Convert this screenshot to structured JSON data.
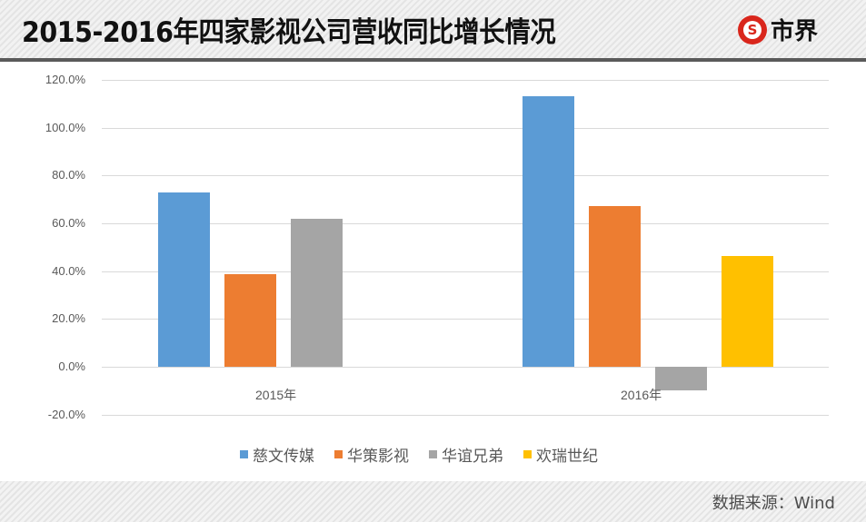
{
  "header": {
    "title": "2015-2016年四家影视公司营收同比增长情况",
    "logo_mark": "S",
    "logo_text": "市界"
  },
  "footer": {
    "source": "数据来源：Wind"
  },
  "colors": {
    "慈文传媒": "#5B9BD5",
    "华策影视": "#ED7D31",
    "华谊兄弟": "#A5A5A5",
    "欢瑞世纪": "#FFC000"
  },
  "legend": [
    {
      "label": "慈文传媒",
      "color": "#5B9BD5"
    },
    {
      "label": "华策影视",
      "color": "#ED7D31"
    },
    {
      "label": "华谊兄弟",
      "color": "#A5A5A5"
    },
    {
      "label": "欢瑞世纪",
      "color": "#FFC000"
    }
  ],
  "axis": {
    "yticks": [
      "120.0%",
      "100.0%",
      "80.0%",
      "60.0%",
      "40.0%",
      "20.0%",
      "0.0%",
      "-20.0%"
    ],
    "xticks": [
      "2015年",
      "2016年"
    ]
  },
  "chart_data": {
    "type": "bar",
    "title": "2015-2016年四家影视公司营收同比增长情况",
    "categories": [
      "2015年",
      "2016年"
    ],
    "series": [
      {
        "name": "慈文传媒",
        "values": [
          72.9,
          113.1
        ]
      },
      {
        "name": "华策影视",
        "values": [
          38.7,
          67.2
        ]
      },
      {
        "name": "华谊兄弟",
        "values": [
          61.9,
          -9.9
        ]
      },
      {
        "name": "欢瑞世纪",
        "values": [
          null,
          46.3
        ]
      }
    ],
    "xlabel": "",
    "ylabel": "",
    "ylim": [
      -20,
      120
    ],
    "yticks": [
      -20,
      0,
      20,
      40,
      60,
      80,
      100,
      120
    ],
    "ytick_format": "0.0%",
    "grid": true,
    "legend_position": "bottom",
    "source": "数据来源：Wind"
  }
}
